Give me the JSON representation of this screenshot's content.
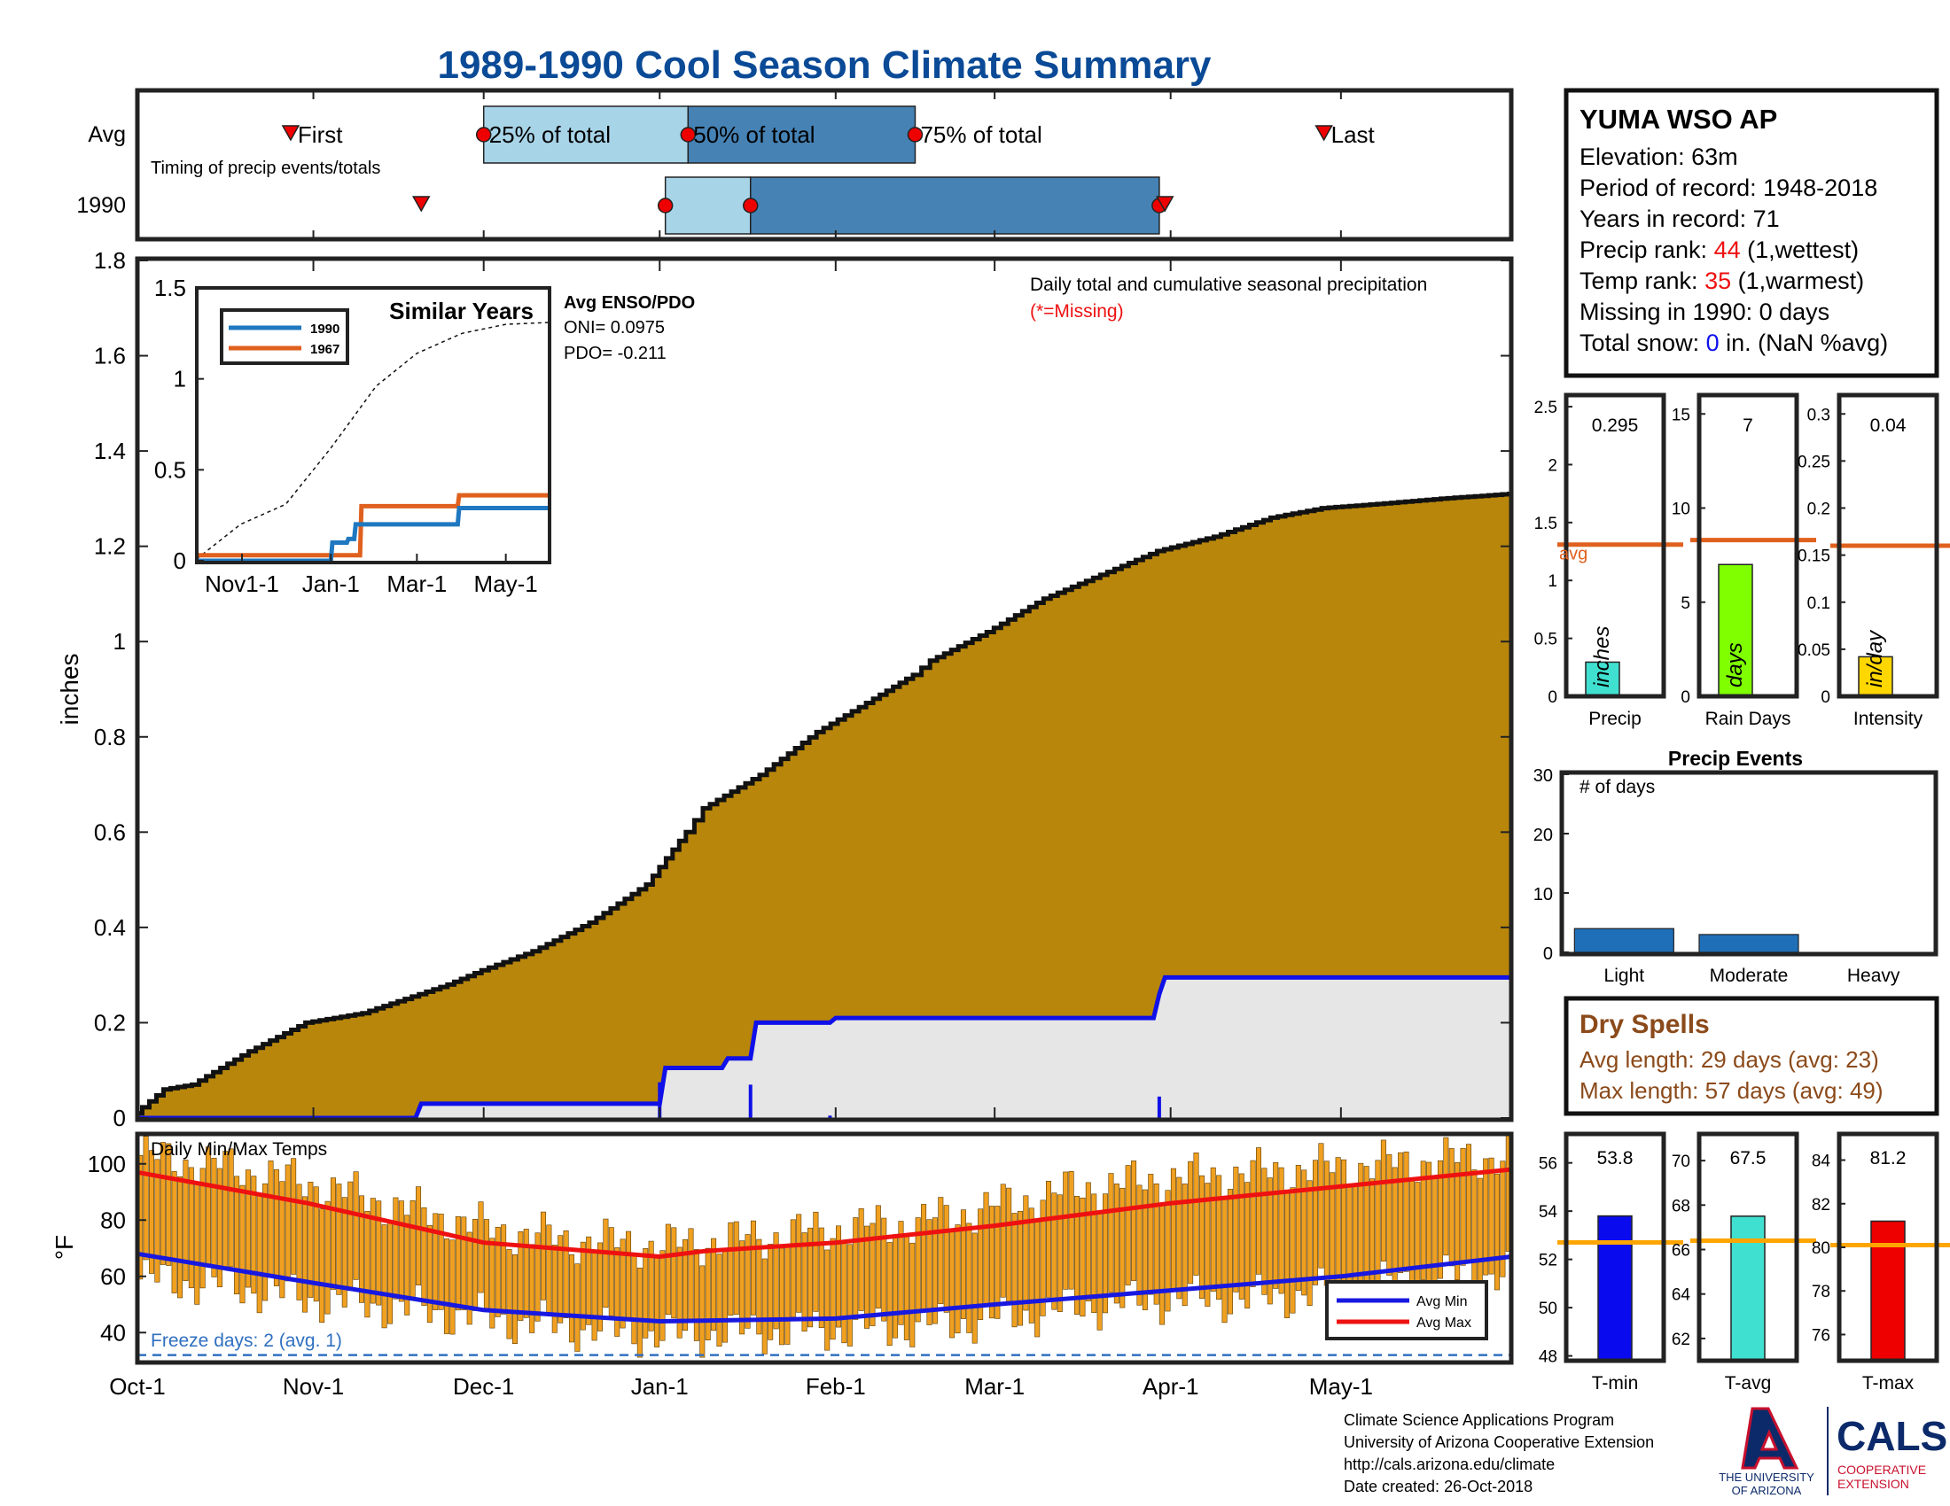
{
  "title": "1989-1990 Cool Season Climate Summary",
  "colors": {
    "title": "#0a4a96",
    "frame": "#222222",
    "cum_fill": "#b8860b",
    "cum_line": "#111111",
    "cum_1990_fill": "#e6e6e6",
    "cum_1990_line": "#1010e8",
    "light_box": "#a8d4e8",
    "dark_box": "#4682b4",
    "marker": "#ee0000",
    "temp_bar": "#f0a020",
    "avg_min": "#1818e0",
    "avg_max": "#ee1111",
    "freeze": "#3070c0",
    "avg_line": "#e0601e",
    "precip_bar": "#40e0d0",
    "raindays_bar": "#7fff00",
    "intensity_bar": "#ffd700",
    "events_bar": "#1f6fb8",
    "dry_spell_text": "#8b4a1a",
    "tmin_bar": "#0a0aee",
    "tavg_bar": "#40e0d0",
    "tmax_bar": "#ee0000",
    "temp_avg_line": "#ffa500",
    "enso_1990": "#1f78c0",
    "enso_1967": "#e0601e",
    "red_text": "#ee1111",
    "blue_text": "#1010ee"
  },
  "timing": {
    "row_avg": "Avg",
    "row_year": "1990",
    "caption": "Timing of precip events/totals",
    "first": "First",
    "p25": "25% of total",
    "p50": "50% of total",
    "p75": "75% of total",
    "last": "Last",
    "avg": {
      "first": 27,
      "p25": 61,
      "p50": 97,
      "p75": 137,
      "last": 209
    },
    "year": {
      "first": 50,
      "p25": 93,
      "p50": 108,
      "p75": 180,
      "last": 181
    }
  },
  "x_axis": {
    "tick_days": [
      0,
      31,
      61,
      92,
      123,
      151,
      182,
      212
    ],
    "tick_labels": [
      "Oct-1",
      "Nov-1",
      "Dec-1",
      "Jan-1",
      "Feb-1",
      "Mar-1",
      "Apr-1",
      "May-1"
    ],
    "total_days": 242
  },
  "chart_data": {
    "type": "area",
    "ylabel": "inches",
    "ylim": [
      0,
      1.8
    ],
    "yticks": [
      0,
      0.2,
      0.4,
      0.6,
      0.8,
      1,
      1.2,
      1.4,
      1.6,
      1.8
    ],
    "note": "Daily total and cumulative seasonal precipitation",
    "note_missing": "(*=Missing)",
    "avg_cumulative": {
      "x": [
        0,
        5,
        10,
        20,
        30,
        40,
        50,
        55,
        61,
        70,
        80,
        90,
        97,
        100,
        110,
        120,
        130,
        137,
        140,
        150,
        160,
        170,
        180,
        190,
        200,
        209,
        220,
        230,
        242
      ],
      "y": [
        0.01,
        0.06,
        0.07,
        0.14,
        0.2,
        0.22,
        0.26,
        0.28,
        0.31,
        0.35,
        0.41,
        0.49,
        0.6,
        0.65,
        0.72,
        0.81,
        0.88,
        0.93,
        0.96,
        1.02,
        1.09,
        1.14,
        1.19,
        1.22,
        1.26,
        1.28,
        1.29,
        1.3,
        1.31
      ]
    },
    "season_1990_cumulative": {
      "x": [
        0,
        49,
        50,
        92,
        93,
        103,
        104,
        108,
        109,
        122,
        123,
        179,
        180,
        181,
        242
      ],
      "y": [
        0,
        0,
        0.03,
        0.03,
        0.105,
        0.105,
        0.125,
        0.125,
        0.2,
        0.2,
        0.21,
        0.21,
        0.26,
        0.295,
        0.295
      ]
    },
    "daily_1990": {
      "x": [
        92,
        108,
        122,
        180
      ],
      "y": [
        0.075,
        0.07,
        0.005,
        0.045
      ]
    }
  },
  "inset": {
    "title": "Similar Years",
    "legend": [
      "1990",
      "1967"
    ],
    "ylim": [
      0,
      1.5
    ],
    "yticks": [
      "0",
      "0.5",
      "1",
      "1.5"
    ],
    "xticks": [
      "Nov1-1",
      "Jan-1",
      "Mar-1",
      "May-1"
    ],
    "xtick_days": [
      31,
      92,
      151,
      212
    ],
    "series_1990": {
      "x": [
        0,
        92,
        93,
        103,
        104,
        108,
        109,
        179,
        180,
        242
      ],
      "y": [
        0,
        0,
        0.1,
        0.1,
        0.12,
        0.12,
        0.2,
        0.2,
        0.29,
        0.29
      ]
    },
    "series_1967": {
      "x": [
        0,
        112,
        113,
        179,
        180,
        242
      ],
      "y": [
        0.03,
        0.03,
        0.3,
        0.3,
        0.36,
        0.36
      ]
    },
    "avg_cumulative": {
      "x": [
        0,
        30,
        61,
        92,
        123,
        151,
        182,
        212,
        242
      ],
      "y": [
        0.01,
        0.2,
        0.31,
        0.62,
        0.96,
        1.14,
        1.25,
        1.3,
        1.31
      ]
    },
    "enso_title": "Avg ENSO/PDO",
    "oni": "ONI= 0.0975",
    "pdo": "PDO= -0.211"
  },
  "station": {
    "name": "YUMA WSO AP",
    "elevation": "Elevation: 63m",
    "period": "Period of record: 1948-2018",
    "years": "Years in record: 71",
    "precip_rank_label": "Precip rank: ",
    "precip_rank": "44",
    "precip_rank_note": " (1,wettest)",
    "temp_rank_label": "Temp rank: ",
    "temp_rank": "35",
    "temp_rank_note": " (1,warmest)",
    "missing": "Missing in 1990: 0 days",
    "snow_label": "Total snow: ",
    "snow_value": "0",
    "snow_note": " in. (NaN %avg)"
  },
  "summary_bars": [
    {
      "label": "Precip",
      "value_text": "0.295",
      "value": 0.295,
      "avg": 1.31,
      "ymax": 2.6,
      "yticks": [
        "0",
        "0.5",
        "1",
        "1.5",
        "2",
        "2.5"
      ],
      "ytick_vals": [
        0,
        0.5,
        1,
        1.5,
        2,
        2.5
      ],
      "bar_text": "inches",
      "avg_label": "avg"
    },
    {
      "label": "Rain Days",
      "value_text": "7",
      "value": 7,
      "avg": 8.3,
      "ymax": 16,
      "yticks": [
        "0",
        "5",
        "10",
        "15"
      ],
      "ytick_vals": [
        0,
        5,
        10,
        15
      ],
      "bar_text": "days"
    },
    {
      "label": "Intensity",
      "value_text": "0.04",
      "value": 0.042,
      "avg": 0.16,
      "ymax": 0.32,
      "yticks": [
        "0",
        "0.05",
        "0.1",
        "0.15",
        "0.2",
        "0.25",
        "0.3"
      ],
      "ytick_vals": [
        0,
        0.05,
        0.1,
        0.15,
        0.2,
        0.25,
        0.3
      ],
      "bar_text": "in/day"
    }
  ],
  "events": {
    "title": "Precip Events",
    "ylabel": "# of days",
    "ymax": 30,
    "yticks": [
      "0",
      "10",
      "20",
      "30"
    ],
    "ytick_vals": [
      0,
      10,
      20,
      30
    ],
    "categories": [
      "Light",
      "Moderate",
      "Heavy"
    ],
    "values": [
      4,
      3,
      0
    ]
  },
  "dry_spells": {
    "title": "Dry Spells",
    "avg": "Avg length: 29 days (avg: 23)",
    "max": "Max length: 57 days (avg: 49)"
  },
  "temps": {
    "title": "Daily Min/Max Temps",
    "ylabel": "°F",
    "ylim": [
      30,
      110
    ],
    "yticks": [
      "40",
      "60",
      "80",
      "100"
    ],
    "ytick_vals": [
      40,
      60,
      80,
      100
    ],
    "freeze": "Freeze days: 2 (avg. 1)",
    "legend_min": "Avg Min",
    "legend_max": "Avg Max",
    "avg_min": {
      "x": [
        0,
        30,
        61,
        92,
        123,
        151,
        182,
        212,
        242
      ],
      "y": [
        68,
        58,
        48,
        44,
        45,
        50,
        55,
        60,
        67
      ]
    },
    "avg_max": {
      "x": [
        0,
        30,
        61,
        92,
        100,
        123,
        151,
        182,
        212,
        242
      ],
      "y": [
        97,
        86,
        72,
        67,
        69,
        72,
        78,
        86,
        92,
        98
      ]
    },
    "daily_range": {
      "x": [
        0,
        15,
        30,
        45,
        61,
        75,
        92,
        105,
        123,
        137,
        151,
        165,
        182,
        197,
        212,
        227,
        242
      ],
      "min": [
        62,
        60,
        55,
        52,
        48,
        45,
        42,
        43,
        44,
        45,
        48,
        52,
        55,
        55,
        58,
        62,
        65
      ],
      "max": [
        100,
        96,
        90,
        82,
        74,
        70,
        68,
        70,
        74,
        76,
        82,
        88,
        92,
        94,
        96,
        98,
        100
      ]
    }
  },
  "temp_bars": [
    {
      "label": "T-min",
      "value_text": "53.8",
      "value": 53.8,
      "avg": 52.7,
      "ymin": 47.8,
      "ymax": 57.2,
      "yticks": [
        "48",
        "50",
        "52",
        "54",
        "56"
      ],
      "ytick_vals": [
        48,
        50,
        52,
        54,
        56
      ]
    },
    {
      "label": "T-avg",
      "value_text": "67.5",
      "value": 67.5,
      "avg": 66.4,
      "ymin": 61,
      "ymax": 71.2,
      "yticks": [
        "62",
        "64",
        "66",
        "68",
        "70"
      ],
      "ytick_vals": [
        62,
        64,
        66,
        68,
        70
      ]
    },
    {
      "label": "T-max",
      "value_text": "81.2",
      "value": 81.2,
      "avg": 80.1,
      "ymin": 74.8,
      "ymax": 85.2,
      "yticks": [
        "76",
        "78",
        "80",
        "82",
        "84"
      ],
      "ytick_vals": [
        76,
        78,
        80,
        82,
        84
      ]
    }
  ],
  "footer": {
    "line1": "Climate Science Applications Program",
    "line2": "University of Arizona Cooperative Extension",
    "line3": "http://cals.arizona.edu/climate",
    "line4": " Date created: 26-Oct-2018",
    "ua_name": "THE UNIVERSITY",
    "ua_name2": "OF ARIZONA",
    "cals": "CALS",
    "cals_sub1": "COOPERATIVE",
    "cals_sub2": "EXTENSION"
  }
}
